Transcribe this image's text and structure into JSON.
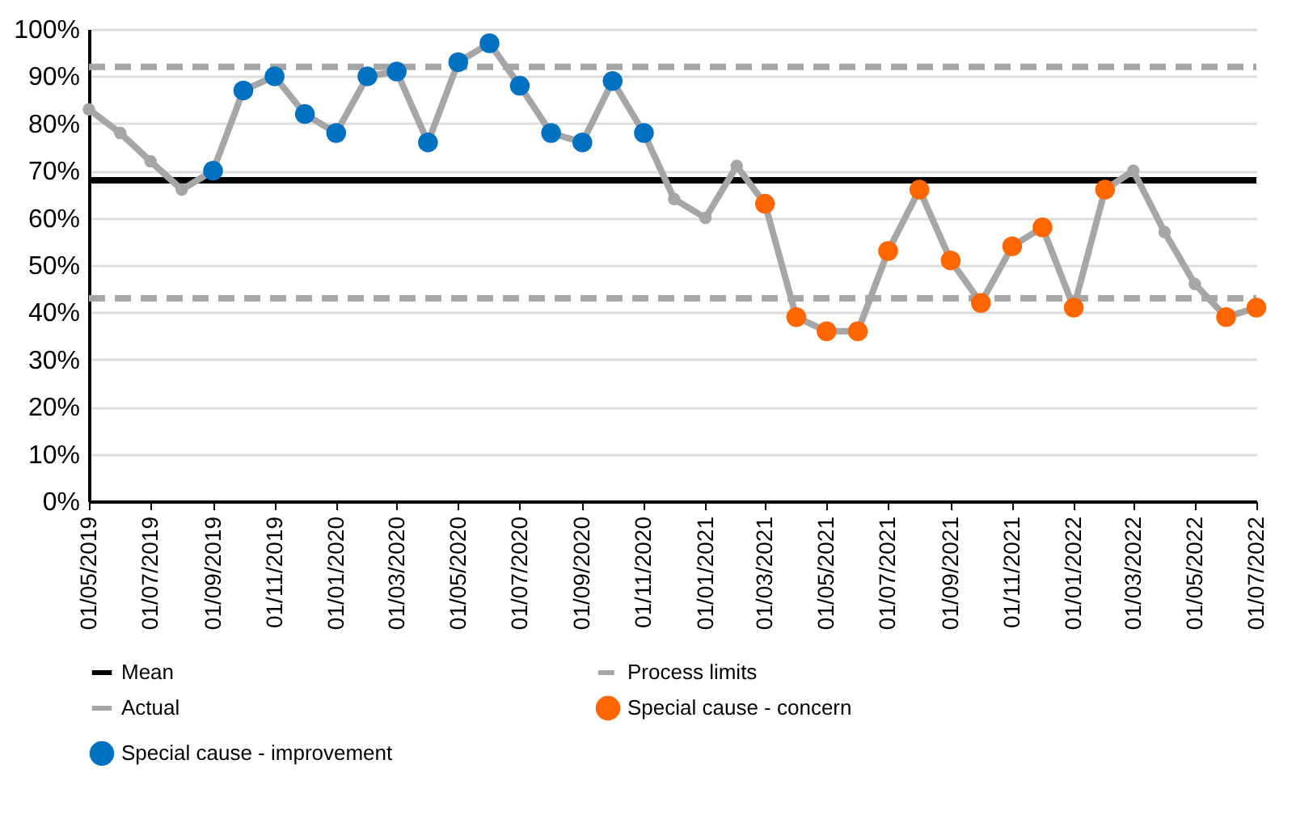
{
  "chart_data": {
    "type": "line",
    "x": [
      "2019-05-01",
      "2019-06-01",
      "2019-07-01",
      "2019-08-01",
      "2019-09-01",
      "2019-10-01",
      "2019-11-01",
      "2019-12-01",
      "2020-01-01",
      "2020-02-01",
      "2020-03-01",
      "2020-04-01",
      "2020-05-01",
      "2020-06-01",
      "2020-07-01",
      "2020-08-01",
      "2020-09-01",
      "2020-10-01",
      "2020-11-01",
      "2020-12-01",
      "2021-01-01",
      "2021-02-01",
      "2021-03-01",
      "2021-04-01",
      "2021-05-01",
      "2021-06-01",
      "2021-07-01",
      "2021-08-01",
      "2021-09-01",
      "2021-10-01",
      "2021-11-01",
      "2021-12-01",
      "2022-01-01",
      "2022-02-01",
      "2022-03-01",
      "2022-04-01",
      "2022-05-01",
      "2022-06-01",
      "2022-07-01"
    ],
    "series": [
      {
        "name": "Actual",
        "color": "#a6a6a6",
        "values": [
          83,
          78,
          72,
          66,
          70,
          87,
          90,
          82,
          78,
          90,
          91,
          76,
          93,
          97,
          88,
          78,
          76,
          89,
          78,
          64,
          60,
          71,
          63,
          39,
          36,
          36,
          53,
          66,
          51,
          42,
          54,
          58,
          41,
          66,
          70,
          57,
          46,
          39,
          41
        ]
      },
      {
        "name": "Special cause - concern",
        "type": "scatter",
        "color": "#ff6600",
        "values": [
          null,
          null,
          null,
          null,
          null,
          null,
          null,
          null,
          null,
          null,
          null,
          null,
          null,
          null,
          null,
          null,
          null,
          null,
          null,
          null,
          null,
          null,
          63,
          39,
          36,
          36,
          53,
          66,
          51,
          42,
          54,
          58,
          41,
          66,
          null,
          null,
          null,
          39,
          41
        ]
      },
      {
        "name": "Special cause - improvement",
        "type": "scatter",
        "color": "#0070c0",
        "values": [
          null,
          null,
          null,
          null,
          70,
          87,
          90,
          82,
          78,
          90,
          91,
          76,
          93,
          97,
          88,
          78,
          76,
          89,
          78,
          null,
          null,
          null,
          null,
          null,
          null,
          null,
          null,
          null,
          null,
          null,
          null,
          null,
          null,
          null,
          null,
          null,
          null,
          null,
          null
        ]
      }
    ],
    "ref_lines": [
      {
        "axis": "y",
        "value": 68,
        "label": "Mean",
        "color": "#000000",
        "line_style": "solid"
      },
      {
        "axis": "y",
        "value": 92,
        "label": "Process limits",
        "color": "#a6a6a6",
        "line_style": "dashed"
      },
      {
        "axis": "y",
        "value": 43,
        "color": "#a6a6a6",
        "line_style": "dashed"
      }
    ],
    "xlim": [
      "2019-05-01",
      "2022-07-01"
    ],
    "xticks": [
      {
        "value": "2019-05-01",
        "label": "01/05/2019"
      },
      {
        "value": "2019-07-01",
        "label": "01/07/2019"
      },
      {
        "value": "2019-09-01",
        "label": "01/09/2019"
      },
      {
        "value": "2019-11-01",
        "label": "01/11/2019"
      },
      {
        "value": "2020-01-01",
        "label": "01/01/2020"
      },
      {
        "value": "2020-03-01",
        "label": "01/03/2020"
      },
      {
        "value": "2020-05-01",
        "label": "01/05/2020"
      },
      {
        "value": "2020-07-01",
        "label": "01/07/2020"
      },
      {
        "value": "2020-09-01",
        "label": "01/09/2020"
      },
      {
        "value": "2020-11-01",
        "label": "01/11/2020"
      },
      {
        "value": "2021-01-01",
        "label": "01/01/2021"
      },
      {
        "value": "2021-03-01",
        "label": "01/03/2021"
      },
      {
        "value": "2021-05-01",
        "label": "01/05/2021"
      },
      {
        "value": "2021-07-01",
        "label": "01/07/2021"
      },
      {
        "value": "2021-09-01",
        "label": "01/09/2021"
      },
      {
        "value": "2021-11-01",
        "label": "01/11/2021"
      },
      {
        "value": "2022-01-01",
        "label": "01/01/2022"
      },
      {
        "value": "2022-03-01",
        "label": "01/03/2022"
      },
      {
        "value": "2022-05-01",
        "label": "01/05/2022"
      },
      {
        "value": "2022-07-01",
        "label": "01/07/2022"
      }
    ],
    "ylim": [
      0,
      100
    ],
    "yticks": [
      {
        "value": 0,
        "label": "0%"
      },
      {
        "value": 10,
        "label": "10%"
      },
      {
        "value": 20,
        "label": "20%"
      },
      {
        "value": 30,
        "label": "30%"
      },
      {
        "value": 40,
        "label": "40%"
      },
      {
        "value": 50,
        "label": "50%"
      },
      {
        "value": 60,
        "label": "60%"
      },
      {
        "value": 70,
        "label": "70%"
      },
      {
        "value": 80,
        "label": "80%"
      },
      {
        "value": 90,
        "label": "90%"
      },
      {
        "value": 100,
        "label": "100%"
      }
    ],
    "grid": "y",
    "legend": "bottom",
    "line_style": "solid",
    "marker": "circle"
  }
}
